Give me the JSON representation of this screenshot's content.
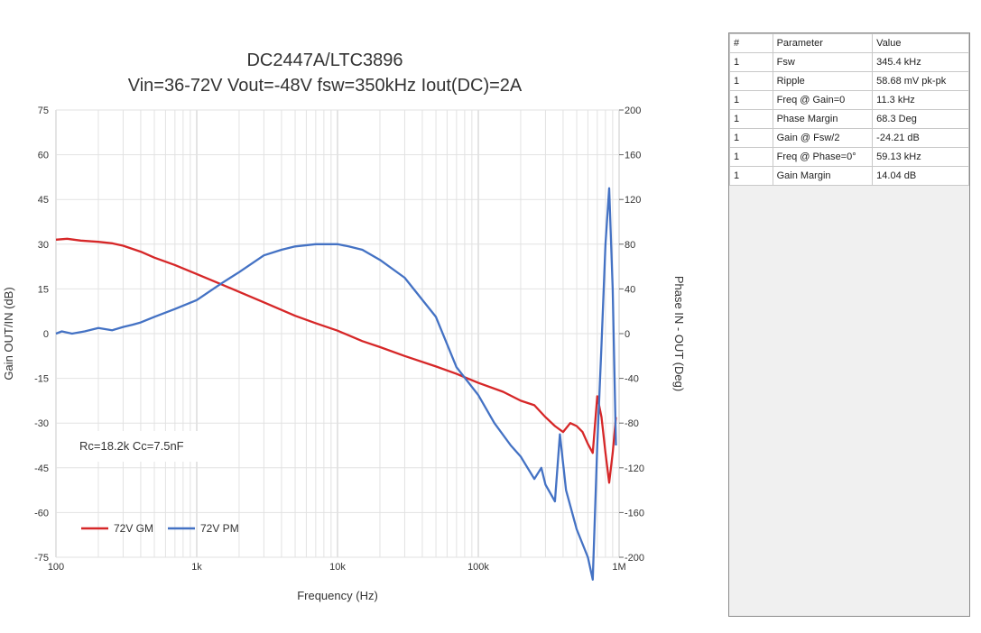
{
  "chart_data": {
    "type": "line",
    "title": "DC2447A/LTC3896",
    "subtitle": "Vin=36-72V Vout=-48V fsw=350kHz Iout(DC)=2A",
    "xlabel": "Frequency (Hz)",
    "ylabel": "Gain OUT/IN (dB)",
    "y2label": "Phase IN - OUT (Deg)",
    "xscale": "log",
    "xlim": [
      100,
      1000000
    ],
    "ylim": [
      -75,
      75
    ],
    "y2lim": [
      -200,
      200
    ],
    "x_ticks": [
      100,
      1000,
      10000,
      100000,
      1000000
    ],
    "x_tick_labels": [
      "100",
      "1k",
      "10k",
      "100k",
      "1M"
    ],
    "y_ticks": [
      -75,
      -60,
      -45,
      -30,
      -15,
      0,
      15,
      30,
      45,
      60,
      75
    ],
    "y2_ticks": [
      -200,
      -160,
      -120,
      -80,
      -40,
      0,
      40,
      80,
      120,
      160,
      200
    ],
    "grid": true,
    "annotation": "Rc=18.2k Cc=7.5nF",
    "legend_position": "bottom-left",
    "series": [
      {
        "name": "72V GM",
        "axis": "left",
        "color": "#d62728",
        "x": [
          100,
          120,
          150,
          200,
          250,
          300,
          400,
          500,
          700,
          1000,
          1500,
          2000,
          3000,
          5000,
          7000,
          10000,
          15000,
          20000,
          30000,
          50000,
          70000,
          100000,
          150000,
          200000,
          250000,
          300000,
          350000,
          400000,
          450000,
          500000,
          550000,
          600000,
          650000,
          700000,
          750000,
          800000,
          850000,
          900000,
          950000
        ],
        "y": [
          31.5,
          31.8,
          31.2,
          30.8,
          30.3,
          29.5,
          27.5,
          25.5,
          23,
          20,
          16.5,
          14,
          10.5,
          6,
          3.5,
          1,
          -2.5,
          -4.5,
          -7.5,
          -11,
          -13.5,
          -16.5,
          -19.5,
          -22.5,
          -24,
          -28,
          -31,
          -33,
          -30,
          -31,
          -33,
          -37,
          -40,
          -21,
          -28,
          -40,
          -50,
          -40,
          -28
        ]
      },
      {
        "name": "72V PM",
        "axis": "right",
        "color": "#4472c4",
        "x": [
          100,
          110,
          130,
          160,
          200,
          250,
          300,
          350,
          400,
          500,
          700,
          1000,
          1500,
          2000,
          3000,
          4000,
          5000,
          7000,
          10000,
          12000,
          15000,
          20000,
          30000,
          50000,
          70000,
          100000,
          130000,
          170000,
          200000,
          250000,
          280000,
          300000,
          350000,
          380000,
          420000,
          500000,
          600000,
          650000,
          700000,
          750000,
          800000,
          850000,
          900000,
          950000
        ],
        "y": [
          0,
          2,
          0,
          2,
          5,
          3,
          6,
          8,
          10,
          15,
          22,
          30,
          45,
          55,
          70,
          75,
          78,
          80,
          80,
          78,
          75,
          66,
          50,
          15,
          -30,
          -55,
          -80,
          -100,
          -110,
          -130,
          -120,
          -135,
          -150,
          -90,
          -140,
          -175,
          -200,
          -220,
          -100,
          -10,
          80,
          130,
          40,
          -100
        ]
      }
    ]
  },
  "results_table": {
    "headers": [
      "#",
      "Parameter",
      "Value"
    ],
    "rows": [
      [
        "1",
        "Fsw",
        "345.4 kHz"
      ],
      [
        "1",
        "Ripple",
        "58.68 mV pk-pk"
      ],
      [
        "1",
        "Freq @ Gain=0",
        "11.3 kHz"
      ],
      [
        "1",
        "Phase Margin",
        "68.3 Deg"
      ],
      [
        "1",
        "Gain @ Fsw/2",
        "-24.21 dB"
      ],
      [
        "1",
        "Freq @ Phase=0°",
        "59.13 kHz"
      ],
      [
        "1",
        "Gain Margin",
        "14.04 dB"
      ]
    ]
  }
}
